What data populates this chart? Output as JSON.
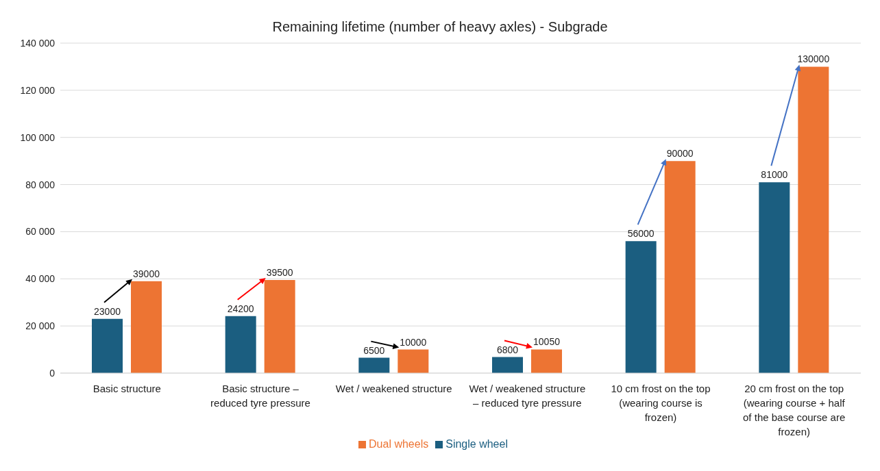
{
  "chart_data": {
    "type": "bar",
    "title": "Remaining lifetime (number of heavy axles) - Subgrade",
    "categories": [
      "Basic structure",
      "Basic structure – reduced tyre pressure",
      "Wet / weakened structure",
      "Wet / weakened structure – reduced tyre pressure",
      "10 cm frost on the top (wearing course is frozen)",
      "20 cm frost on the top (wearing course + half of the base course are frozen)"
    ],
    "series": [
      {
        "name": "Single wheel",
        "color": "#1b5e80",
        "values": [
          23000,
          24200,
          6500,
          6800,
          56000,
          81000
        ]
      },
      {
        "name": "Dual wheels",
        "color": "#ed7433",
        "values": [
          39000,
          39500,
          10000,
          10050,
          90000,
          130000
        ]
      }
    ],
    "ylim": [
      0,
      140000
    ],
    "yticks": [
      0,
      {
        "value": 20000,
        "label": "20 000"
      },
      {
        "value": 40000,
        "label": "40 000"
      },
      {
        "value": 60000,
        "label": "60 000"
      },
      {
        "value": 80000,
        "label": "80 000"
      },
      {
        "value": 100000,
        "label": "100 000"
      },
      {
        "value": 120000,
        "label": "120 000"
      },
      {
        "value": 140000,
        "label": "140 000"
      }
    ],
    "grid": "y",
    "legend": "bottom",
    "data_labels": true
  }
}
